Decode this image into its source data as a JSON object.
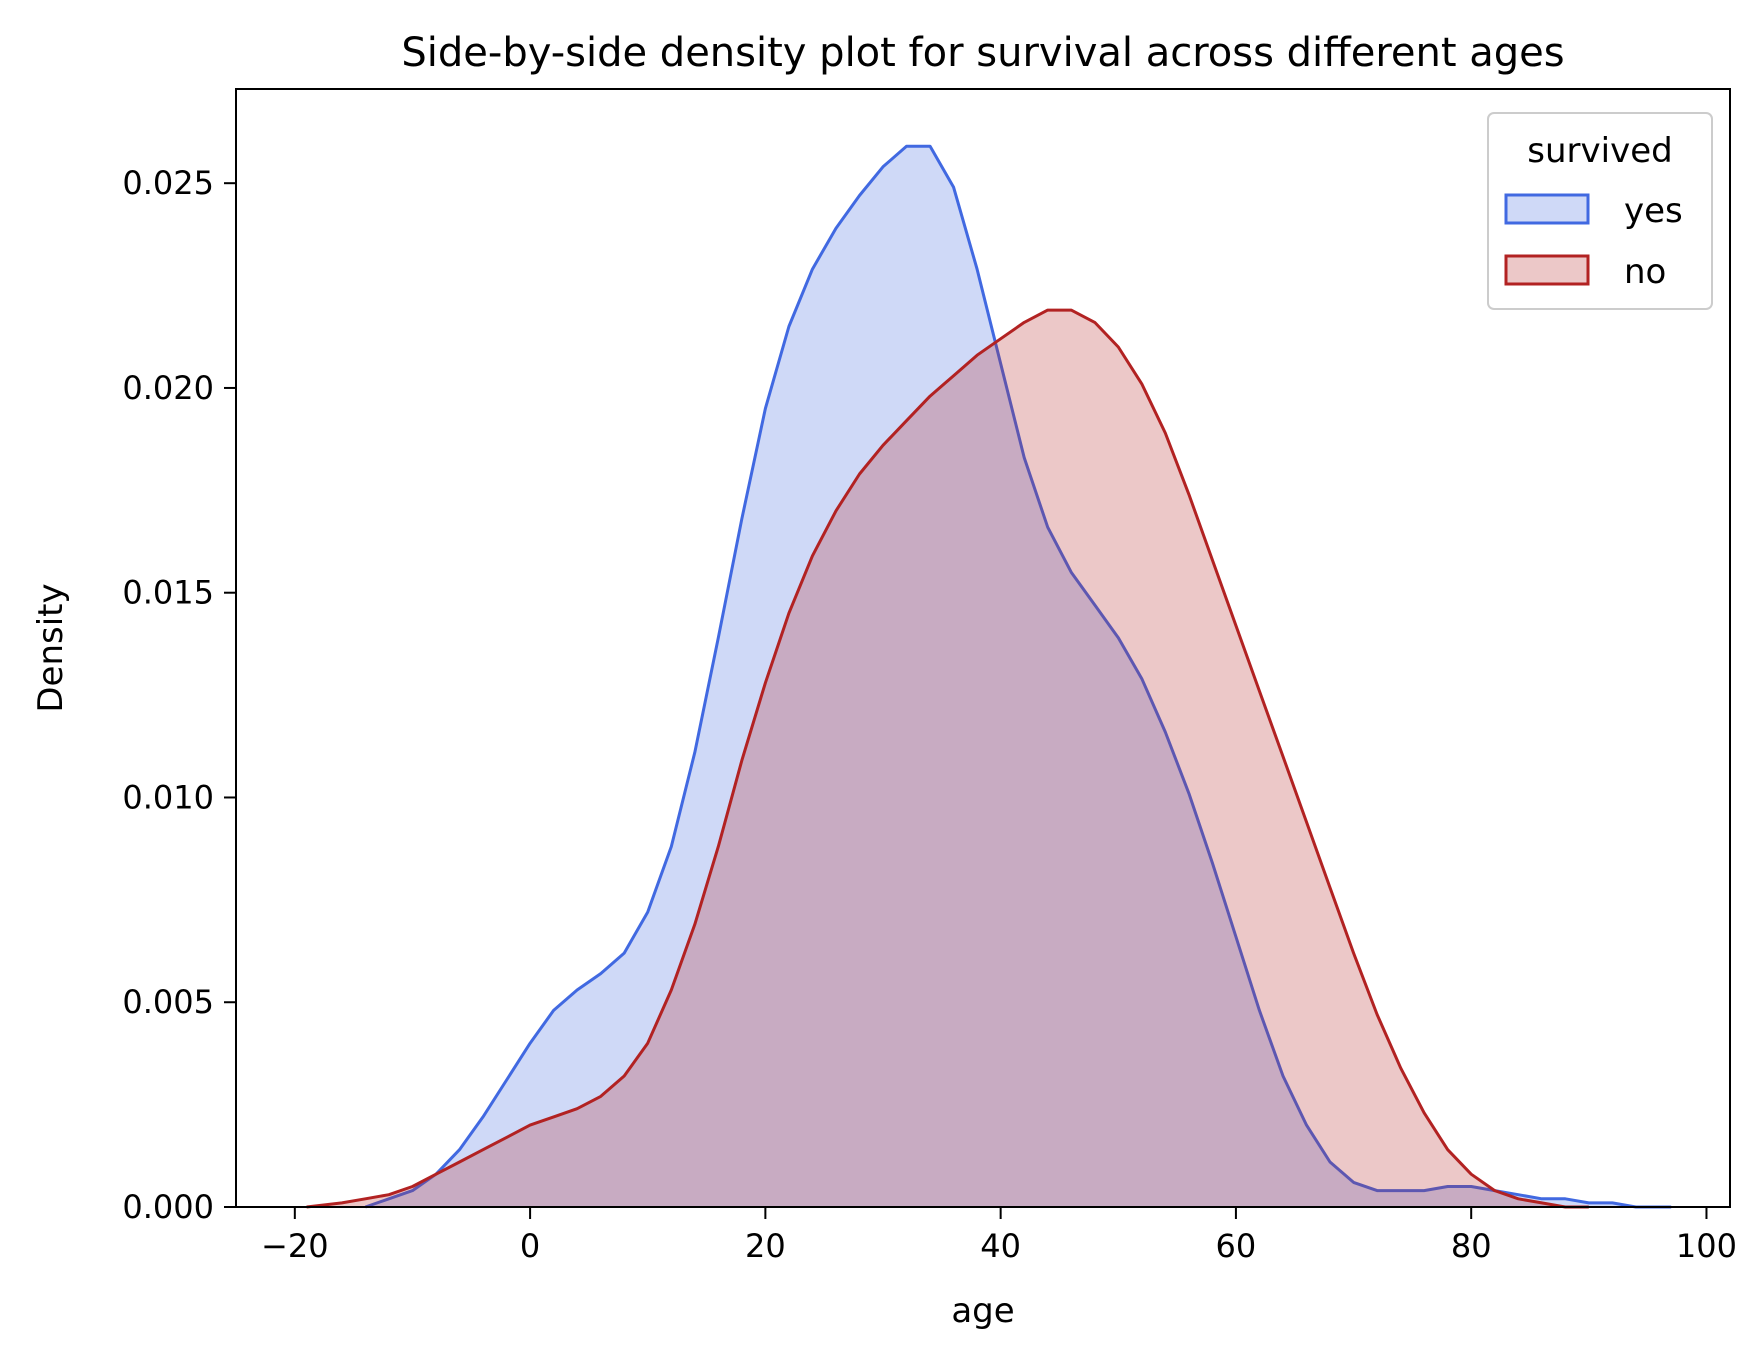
{
  "chart_data": {
    "type": "area",
    "title": "Side-by-side density plot for survival across different ages",
    "xlabel": "age",
    "ylabel": "Density",
    "xlim": [
      -25,
      102
    ],
    "ylim": [
      0,
      0.0273
    ],
    "x_ticks": [
      -20,
      0,
      20,
      40,
      60,
      80,
      100
    ],
    "x_tick_labels": [
      "−20",
      "0",
      "20",
      "40",
      "60",
      "80",
      "100"
    ],
    "y_ticks": [
      0,
      0.005,
      0.01,
      0.015,
      0.02,
      0.025
    ],
    "y_tick_labels": [
      "0.000",
      "0.005",
      "0.010",
      "0.015",
      "0.020",
      "0.025"
    ],
    "grid": false,
    "legend": {
      "title": "survived",
      "placement": "top-right",
      "entries": [
        "yes",
        "no"
      ]
    },
    "series": [
      {
        "name": "yes",
        "color": "#4169e1",
        "fill_opacity": 0.25,
        "points": [
          [
            -14,
            0.0
          ],
          [
            -12,
            0.0002
          ],
          [
            -10,
            0.0004
          ],
          [
            -8,
            0.0008
          ],
          [
            -6,
            0.0014
          ],
          [
            -4,
            0.0022
          ],
          [
            -2,
            0.0031
          ],
          [
            0,
            0.004
          ],
          [
            2,
            0.0048
          ],
          [
            4,
            0.0053
          ],
          [
            6,
            0.0057
          ],
          [
            8,
            0.0062
          ],
          [
            10,
            0.0072
          ],
          [
            12,
            0.0088
          ],
          [
            14,
            0.0111
          ],
          [
            16,
            0.0139
          ],
          [
            18,
            0.0168
          ],
          [
            20,
            0.0195
          ],
          [
            22,
            0.0215
          ],
          [
            24,
            0.0229
          ],
          [
            26,
            0.0239
          ],
          [
            28,
            0.0247
          ],
          [
            30,
            0.0254
          ],
          [
            32,
            0.0259
          ],
          [
            34,
            0.0259
          ],
          [
            36,
            0.0249
          ],
          [
            38,
            0.0229
          ],
          [
            40,
            0.0206
          ],
          [
            42,
            0.0183
          ],
          [
            44,
            0.0166
          ],
          [
            46,
            0.0155
          ],
          [
            48,
            0.0147
          ],
          [
            50,
            0.0139
          ],
          [
            52,
            0.0129
          ],
          [
            54,
            0.0116
          ],
          [
            56,
            0.0101
          ],
          [
            58,
            0.0084
          ],
          [
            60,
            0.0066
          ],
          [
            62,
            0.0048
          ],
          [
            64,
            0.0032
          ],
          [
            66,
            0.002
          ],
          [
            68,
            0.0011
          ],
          [
            70,
            0.0006
          ],
          [
            72,
            0.0004
          ],
          [
            74,
            0.0004
          ],
          [
            76,
            0.0004
          ],
          [
            78,
            0.0005
          ],
          [
            80,
            0.0005
          ],
          [
            82,
            0.0004
          ],
          [
            84,
            0.0003
          ],
          [
            86,
            0.0002
          ],
          [
            88,
            0.0002
          ],
          [
            90,
            0.0001
          ],
          [
            92,
            0.0001
          ],
          [
            94,
            0.0
          ],
          [
            97,
            0.0
          ]
        ]
      },
      {
        "name": "no",
        "color": "#b22222",
        "fill_opacity": 0.25,
        "points": [
          [
            -19,
            0.0
          ],
          [
            -16,
            0.0001
          ],
          [
            -14,
            0.0002
          ],
          [
            -12,
            0.0003
          ],
          [
            -10,
            0.0005
          ],
          [
            -8,
            0.0008
          ],
          [
            -6,
            0.0011
          ],
          [
            -4,
            0.0014
          ],
          [
            -2,
            0.0017
          ],
          [
            0,
            0.002
          ],
          [
            2,
            0.0022
          ],
          [
            4,
            0.0024
          ],
          [
            6,
            0.0027
          ],
          [
            8,
            0.0032
          ],
          [
            10,
            0.004
          ],
          [
            12,
            0.0053
          ],
          [
            14,
            0.0069
          ],
          [
            16,
            0.0088
          ],
          [
            18,
            0.0109
          ],
          [
            20,
            0.0128
          ],
          [
            22,
            0.0145
          ],
          [
            24,
            0.0159
          ],
          [
            26,
            0.017
          ],
          [
            28,
            0.0179
          ],
          [
            30,
            0.0186
          ],
          [
            32,
            0.0192
          ],
          [
            34,
            0.0198
          ],
          [
            36,
            0.0203
          ],
          [
            38,
            0.0208
          ],
          [
            40,
            0.0212
          ],
          [
            42,
            0.0216
          ],
          [
            44,
            0.0219
          ],
          [
            46,
            0.0219
          ],
          [
            48,
            0.0216
          ],
          [
            50,
            0.021
          ],
          [
            52,
            0.0201
          ],
          [
            54,
            0.0189
          ],
          [
            56,
            0.0174
          ],
          [
            58,
            0.0158
          ],
          [
            60,
            0.0142
          ],
          [
            62,
            0.0126
          ],
          [
            64,
            0.011
          ],
          [
            66,
            0.0094
          ],
          [
            68,
            0.0078
          ],
          [
            70,
            0.0062
          ],
          [
            72,
            0.0047
          ],
          [
            74,
            0.0034
          ],
          [
            76,
            0.0023
          ],
          [
            78,
            0.0014
          ],
          [
            80,
            0.0008
          ],
          [
            82,
            0.0004
          ],
          [
            84,
            0.0002
          ],
          [
            86,
            0.0001
          ],
          [
            88,
            0.0
          ],
          [
            90,
            0.0
          ]
        ]
      }
    ]
  }
}
